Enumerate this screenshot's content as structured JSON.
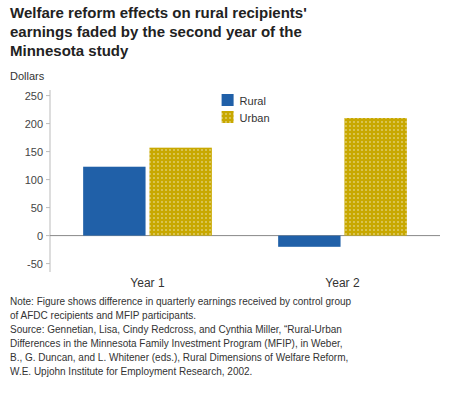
{
  "chart_data": {
    "type": "bar",
    "title": "Welfare reform effects on rural recipients'\nearnings faded by the second year of the\nMinnesota study",
    "y_label": "Dollars",
    "categories": [
      "Year 1",
      "Year 2"
    ],
    "series": [
      {
        "name": "Rural",
        "color": "#2060A8",
        "values": [
          123,
          -20
        ]
      },
      {
        "name": "Urban",
        "color": "#C8A800",
        "values": [
          157,
          210
        ]
      }
    ],
    "ylim": [
      -65,
      260
    ],
    "yticks": [
      -50,
      0,
      50,
      100,
      150,
      200,
      250
    ],
    "grid": false,
    "legend": "top",
    "annotations": [
      "Note: Figure shows difference in quarterly earnings received by control group\nof AFDC recipients and MFIP participants.\nSource:  Gennetian, Lisa, Cindy Redcross, and Cynthia Miller, “Rural-Urban\nDifferences in the Minnesota Family Investment Program (MFIP), in Weber,\nB., G. Duncan, and L. Whitener (eds.), Rural Dimensions of Welfare Reform,\nW.E. Upjohn Institute for Employment Research, 2002."
    ]
  }
}
